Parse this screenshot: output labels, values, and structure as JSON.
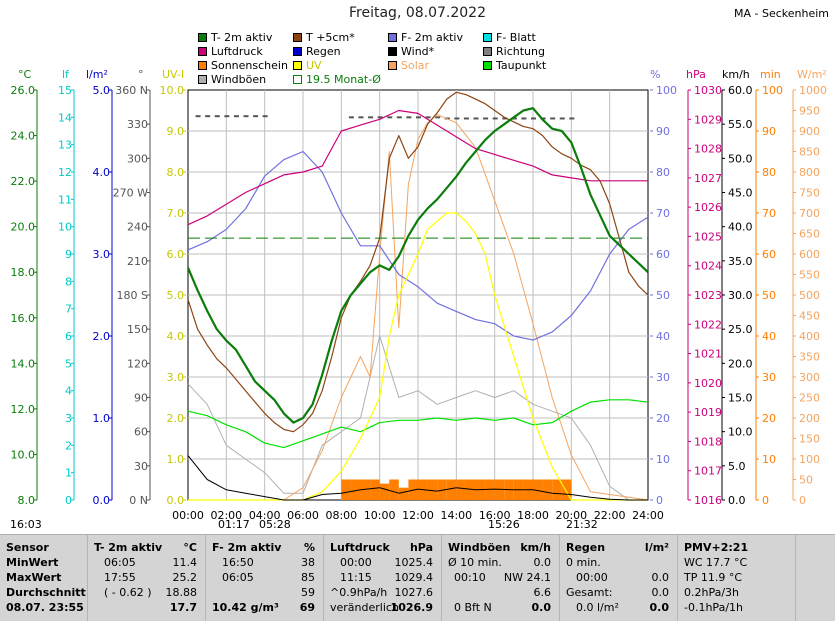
{
  "header": {
    "title": "Freitag, 08.07.2022",
    "station": "MA - Seckenheim"
  },
  "legend": [
    {
      "label": "T- 2m aktiv",
      "color": "#0a7d0a"
    },
    {
      "label": "T +5cm*",
      "color": "#8b4513"
    },
    {
      "label": "F- 2m aktiv",
      "color": "#7070e0"
    },
    {
      "label": "F- Blatt",
      "color": "#00e0e0"
    },
    {
      "label": "Luftdruck",
      "color": "#cc007a"
    },
    {
      "label": "Regen",
      "color": "#0000cc"
    },
    {
      "label": "Wind*",
      "color": "#000000"
    },
    {
      "label": "Richtung",
      "color": "#808080"
    },
    {
      "label": "Sonnenschein",
      "color": "#ff7f00"
    },
    {
      "label": "UV",
      "color": "#ffff00"
    },
    {
      "label": "Solar",
      "color": "#f4a460"
    },
    {
      "label": "Taupunkt",
      "color": "#00e000"
    },
    {
      "label": "Windböen",
      "color": "#b0b0b0"
    },
    {
      "label": "19.5 Monat-Ø",
      "color": "#0a7d0a",
      "outline": true
    }
  ],
  "axes": {
    "temp": {
      "unit": "°C",
      "color": "#0a7d0a",
      "ticks": [
        "8.0",
        "10.0",
        "12.0",
        "14.0",
        "16.0",
        "18.0",
        "20.0",
        "22.0",
        "24.0",
        "26.0"
      ]
    },
    "leaf": {
      "unit": "lf",
      "color": "#00c8c8",
      "ticks": [
        "0",
        "1",
        "2",
        "3",
        "4",
        "5",
        "6",
        "7",
        "8",
        "9",
        "10",
        "11",
        "12",
        "13",
        "14",
        "15"
      ]
    },
    "rain": {
      "unit": "l/m²",
      "color": "#0000cc",
      "ticks": [
        "0.0",
        "1.0",
        "2.0",
        "3.0",
        "4.0",
        "5.0"
      ]
    },
    "dir": {
      "unit": "°",
      "color": "#555555",
      "ticks": [
        "0 N",
        "30",
        "60",
        "90",
        "120",
        "150",
        "180 S",
        "210",
        "240",
        "270 W",
        "300",
        "330",
        "360 N"
      ]
    },
    "uv": {
      "unit": "UV-I",
      "color": "#c8c800",
      "ticks": [
        "0.0",
        "1.0",
        "2.0",
        "3.0",
        "4.0",
        "5.0",
        "6.0",
        "7.0",
        "8.0",
        "9.0",
        "10.0"
      ]
    },
    "hum": {
      "unit": "%",
      "color": "#7070e0",
      "ticks": [
        "0",
        "10",
        "20",
        "30",
        "40",
        "50",
        "60",
        "70",
        "80",
        "90",
        "100"
      ]
    },
    "press": {
      "unit": "hPa",
      "color": "#cc007a",
      "ticks": [
        "1016",
        "1017",
        "1018",
        "1019",
        "1020",
        "1021",
        "1022",
        "1023",
        "1024",
        "1025",
        "1026",
        "1027",
        "1028",
        "1029",
        "1030"
      ]
    },
    "wind": {
      "unit": "km/h",
      "color": "#000000",
      "ticks": [
        "0.0",
        "5.0",
        "10.0",
        "15.0",
        "20.0",
        "25.0",
        "30.0",
        "35.0",
        "40.0",
        "45.0",
        "50.0",
        "55.0",
        "60.0"
      ]
    },
    "sunmin": {
      "unit": "min",
      "color": "#ff7f00",
      "ticks": [
        "0",
        "10",
        "20",
        "30",
        "40",
        "50",
        "60",
        "70",
        "80",
        "90",
        "100"
      ]
    },
    "solar": {
      "unit": "W/m²",
      "color": "#f4a460",
      "ticks": [
        "0",
        "50",
        "100",
        "150",
        "200",
        "250",
        "300",
        "350",
        "400",
        "450",
        "500",
        "550",
        "600",
        "650",
        "700",
        "750",
        "800",
        "850",
        "900",
        "950",
        "1000"
      ]
    },
    "x_ticks": [
      "00:00",
      "02:00",
      "04:00",
      "06:00",
      "08:00",
      "10:00",
      "12:00",
      "14:00",
      "16:00",
      "18:00",
      "20:00",
      "22:00",
      "24:00"
    ]
  },
  "time_markers": [
    {
      "label": "16:03"
    },
    {
      "label": "01:17"
    },
    {
      "label": "05:28"
    },
    {
      "label": "15:26"
    },
    {
      "label": "21:32"
    }
  ],
  "chart_data": {
    "type": "line",
    "title": "Freitag, 08.07.2022",
    "x_unit": "hours",
    "xlim": [
      0,
      24
    ],
    "series": [
      {
        "name": "T- 2m aktiv",
        "axis": "temp",
        "color": "#0a7d0a",
        "x": [
          0,
          0.5,
          1,
          1.5,
          2,
          2.5,
          3,
          3.5,
          4,
          4.5,
          5,
          5.5,
          6,
          6.5,
          7,
          7.5,
          8,
          8.5,
          9,
          9.5,
          10,
          10.5,
          11,
          11.5,
          12,
          12.5,
          13,
          13.5,
          14,
          14.5,
          15,
          15.5,
          16,
          16.5,
          17,
          17.5,
          18,
          18.5,
          19,
          19.5,
          20,
          20.5,
          21,
          21.5,
          22,
          22.5,
          23,
          23.5,
          24
        ],
        "y": [
          18.2,
          17.2,
          16.3,
          15.5,
          15.0,
          14.6,
          13.9,
          13.2,
          12.8,
          12.4,
          11.8,
          11.4,
          11.6,
          12.2,
          13.5,
          15.0,
          16.3,
          17.0,
          17.5,
          18.0,
          18.3,
          18.1,
          18.7,
          19.6,
          20.3,
          20.8,
          21.2,
          21.7,
          22.2,
          22.8,
          23.3,
          23.8,
          24.2,
          24.5,
          24.8,
          25.1,
          25.2,
          24.7,
          24.3,
          24.2,
          23.7,
          22.6,
          21.4,
          20.5,
          19.6,
          19.2,
          18.8,
          18.4,
          18.0
        ]
      },
      {
        "name": "T +5cm*",
        "axis": "temp",
        "color": "#8b4513",
        "x": [
          0,
          0.5,
          1,
          1.5,
          2,
          2.5,
          3,
          3.5,
          4,
          4.5,
          5,
          5.5,
          6,
          6.5,
          7,
          7.5,
          8,
          8.5,
          9,
          9.5,
          10,
          10.5,
          11,
          11.5,
          12,
          12.5,
          13,
          13.5,
          14,
          14.5,
          15,
          15.5,
          16,
          16.5,
          17,
          17.5,
          18,
          18.5,
          19,
          19.5,
          20,
          20.5,
          21,
          21.5,
          22,
          22.5,
          23,
          23.5,
          24
        ],
        "y": [
          16.8,
          15.5,
          14.8,
          14.2,
          13.8,
          13.3,
          12.8,
          12.3,
          11.8,
          11.4,
          11.1,
          11.0,
          11.3,
          11.8,
          12.8,
          14.3,
          16.0,
          17.0,
          17.6,
          18.3,
          19.5,
          23.0,
          24.0,
          23.0,
          23.5,
          24.5,
          25.0,
          25.6,
          25.9,
          25.8,
          25.6,
          25.4,
          25.1,
          24.8,
          24.6,
          24.4,
          24.3,
          24.0,
          23.5,
          23.2,
          23.0,
          22.7,
          22.5,
          22.0,
          21.0,
          19.5,
          18.0,
          17.4,
          17.0
        ]
      },
      {
        "name": "Taupunkt",
        "axis": "temp",
        "color": "#00e000",
        "x": [
          0,
          1,
          2,
          3,
          4,
          5,
          6,
          7,
          8,
          9,
          10,
          11,
          12,
          13,
          14,
          15,
          16,
          17,
          18,
          19,
          20,
          21,
          22,
          23,
          24
        ],
        "y": [
          11.9,
          11.7,
          11.3,
          11.0,
          10.5,
          10.3,
          10.6,
          10.9,
          11.2,
          11.0,
          11.4,
          11.5,
          11.5,
          11.6,
          11.5,
          11.6,
          11.5,
          11.6,
          11.3,
          11.4,
          11.9,
          12.3,
          12.4,
          12.4,
          12.3
        ]
      },
      {
        "name": "F- 2m aktiv",
        "axis": "hum",
        "color": "#7070e0",
        "x": [
          0,
          1,
          2,
          3,
          4,
          5,
          6,
          7,
          8,
          9,
          10,
          11,
          12,
          13,
          14,
          15,
          16,
          17,
          18,
          19,
          20,
          21,
          22,
          23,
          24
        ],
        "y": [
          61,
          63,
          66,
          71,
          79,
          83,
          85,
          80,
          70,
          62,
          62,
          55,
          52,
          48,
          46,
          44,
          43,
          40,
          39,
          41,
          45,
          51,
          60,
          66,
          69
        ]
      },
      {
        "name": "Luftdruck",
        "axis": "press",
        "color": "#cc007a",
        "x": [
          0,
          1,
          2,
          3,
          4,
          5,
          6,
          7,
          8,
          9,
          10,
          11,
          12,
          13,
          14,
          15,
          16,
          17,
          18,
          19,
          20,
          21,
          22,
          23,
          24
        ],
        "y": [
          1025.4,
          1025.7,
          1026.1,
          1026.5,
          1026.8,
          1027.1,
          1027.2,
          1027.4,
          1028.6,
          1028.8,
          1029.0,
          1029.3,
          1029.2,
          1028.8,
          1028.4,
          1028.0,
          1027.8,
          1027.6,
          1027.4,
          1027.1,
          1027.0,
          1026.9,
          1026.9,
          1026.9,
          1026.9
        ]
      },
      {
        "name": "Windböen",
        "axis": "wind",
        "color": "#b0b0b0",
        "x": [
          0,
          1,
          2,
          3,
          4,
          5,
          6,
          7,
          8,
          9,
          10,
          11,
          12,
          13,
          14,
          15,
          16,
          17,
          18,
          19,
          20,
          21,
          22,
          23,
          24
        ],
        "y": [
          17,
          14,
          8,
          6,
          4,
          1,
          1,
          8,
          10,
          12,
          24,
          15,
          16,
          14,
          15,
          16,
          15,
          16,
          14,
          13,
          12,
          8,
          2,
          0,
          0
        ]
      },
      {
        "name": "Wind*",
        "axis": "wind",
        "color": "#000000",
        "x": [
          0,
          1,
          2,
          3,
          4,
          5,
          6,
          7,
          8,
          9,
          10,
          11,
          12,
          13,
          14,
          15,
          16,
          17,
          18,
          19,
          20,
          21,
          22,
          23,
          24
        ],
        "y": [
          6.5,
          3.0,
          1.5,
          1.0,
          0.5,
          0,
          0,
          0.8,
          1.0,
          1.5,
          1.8,
          1.0,
          1.6,
          1.3,
          1.8,
          1.5,
          1.6,
          1.5,
          1.5,
          1.0,
          0.8,
          0.4,
          0.1,
          0,
          0
        ]
      },
      {
        "name": "UV",
        "axis": "uv",
        "color": "#ffff00",
        "x": [
          0,
          6,
          7,
          8,
          9,
          9.5,
          10,
          10.5,
          11,
          11.5,
          12,
          12.5,
          13,
          13.5,
          14,
          14.5,
          15,
          15.5,
          16,
          17,
          18,
          19,
          20,
          24
        ],
        "y": [
          0,
          0,
          0.2,
          0.7,
          1.5,
          2.0,
          2.5,
          4.0,
          5.0,
          5.5,
          6.0,
          6.6,
          6.8,
          7.0,
          7.0,
          6.8,
          6.5,
          6.0,
          5.0,
          3.5,
          2.0,
          0.8,
          0,
          0
        ]
      },
      {
        "name": "Solar",
        "axis": "solar",
        "color": "#f4a460",
        "x": [
          0,
          5,
          6,
          7,
          8,
          9,
          9.5,
          10,
          10.5,
          11,
          11.5,
          12,
          12.5,
          13,
          14,
          15,
          16,
          17,
          18,
          19,
          20,
          21,
          24
        ],
        "y": [
          0,
          0,
          30,
          120,
          250,
          350,
          300,
          600,
          850,
          420,
          770,
          880,
          920,
          940,
          920,
          860,
          730,
          600,
          430,
          250,
          110,
          20,
          0
        ]
      },
      {
        "name": "Sonnenschein",
        "axis": "sunmin",
        "color": "#ff7f00",
        "x": [
          8.0,
          8.5,
          9.0,
          9.5,
          10.0,
          10.5,
          11.0,
          11.5,
          12.0,
          12.5,
          13.0,
          13.5,
          14.0,
          14.5,
          15.0,
          15.5,
          16.0,
          16.5,
          17.0,
          17.5,
          18.0,
          18.5,
          19.0,
          19.5
        ],
        "y": [
          5,
          5,
          5,
          5,
          4,
          5,
          3,
          5,
          5,
          5,
          5,
          5,
          5,
          5,
          5,
          5,
          5,
          5,
          5,
          5,
          5,
          5,
          5,
          5
        ]
      },
      {
        "name": "Richtung",
        "axis": "dir",
        "color": "#555555",
        "x": [
          0.5,
          1,
          1.5,
          2,
          2.5,
          3,
          3.5,
          4,
          8.5,
          9,
          9.5,
          10,
          10.5,
          11,
          11.5,
          12,
          12.5,
          13,
          13.5,
          14,
          14.5,
          15,
          15.5,
          16,
          16.5,
          17,
          17.5,
          18,
          18.5,
          19,
          19.5,
          20
        ],
        "y": [
          337,
          337,
          337,
          337,
          337,
          337,
          337,
          337,
          336,
          336,
          336,
          336,
          336,
          336,
          336,
          336,
          336,
          336,
          335,
          335,
          335,
          335,
          335,
          335,
          335,
          335,
          335,
          335,
          335,
          335,
          335,
          335
        ]
      },
      {
        "name": "19.5 Monat-Ø",
        "axis": "temp",
        "color": "#0a7d0a",
        "dashed": true,
        "x": [
          0,
          24
        ],
        "y": [
          19.5,
          19.5
        ]
      }
    ]
  },
  "panel": {
    "sensor": {
      "title": "Sensor",
      "rows": [
        "MinWert",
        "MaxWert",
        "Durchschnitt",
        "08.07. 23:55"
      ]
    },
    "temp": {
      "title": "T- 2m aktiv",
      "unit": "°C",
      "rows": [
        [
          "06:05",
          "11.4"
        ],
        [
          "17:55",
          "25.2"
        ],
        [
          "( - 0.62 )",
          "18.88"
        ],
        [
          "",
          "17.7"
        ]
      ]
    },
    "hum": {
      "title": "F- 2m aktiv",
      "unit": "%",
      "rows": [
        [
          "16:50",
          "38"
        ],
        [
          "06:05",
          "85"
        ],
        [
          "",
          "59"
        ],
        [
          "10.42 g/m³",
          "69"
        ]
      ]
    },
    "press": {
      "title": "Luftdruck",
      "unit": "hPa",
      "rows": [
        [
          "00:00",
          "1025.4"
        ],
        [
          "11:15",
          "1029.4"
        ],
        [
          "^0.9hPa/h",
          "1027.6"
        ],
        [
          "veränderlich",
          "1026.9"
        ]
      ]
    },
    "wind": {
      "title": "Windböen",
      "unit": "km/h",
      "rows": [
        [
          "Ø 10 min.",
          "0.0"
        ],
        [
          "00:10",
          "NW 24.1"
        ],
        [
          "",
          "6.6"
        ],
        [
          "0 Bft N",
          "0.0"
        ]
      ]
    },
    "rain": {
      "title": "Regen",
      "unit": "l/m²",
      "rows": [
        [
          "0 min.",
          ""
        ],
        [
          "00:00",
          "0.0"
        ],
        [
          "Gesamt:",
          "0.0"
        ],
        [
          "0.0 l/m²",
          "0.0"
        ]
      ]
    },
    "pmv": {
      "title": "PMV+2:21",
      "rows": [
        "WC 17.7 °C",
        "TP 11.9 °C",
        "0.2hPa/3h",
        "-0.1hPa/1h"
      ]
    }
  }
}
